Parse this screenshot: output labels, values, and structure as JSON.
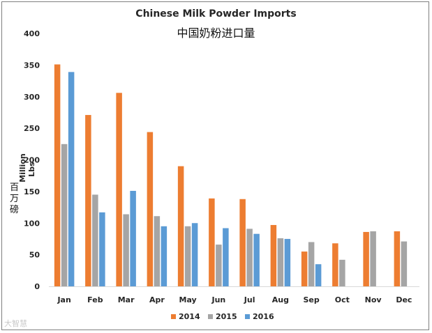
{
  "chart_data": {
    "type": "bar",
    "title": "Chinese Milk Powder Imports",
    "subtitle": "中国奶粉进口量",
    "ylabel": "Million Lbs.",
    "ylabel_cn": "百万磅",
    "xlabel": "",
    "ylim": [
      0,
      400
    ],
    "yticks": [
      0,
      50,
      100,
      150,
      200,
      250,
      300,
      350,
      400
    ],
    "grid": false,
    "legend_position": "bottom",
    "categories": [
      "Jan",
      "Feb",
      "Mar",
      "Apr",
      "May",
      "Jun",
      "Jul",
      "Aug",
      "Sep",
      "Oct",
      "Nov",
      "Dec"
    ],
    "series": [
      {
        "name": "2014",
        "color": "#ed7d31",
        "values": [
          351,
          271,
          306,
          244,
          190,
          139,
          138,
          97,
          55,
          68,
          86,
          87
        ]
      },
      {
        "name": "2015",
        "color": "#a5a5a5",
        "values": [
          225,
          145,
          114,
          111,
          95,
          66,
          91,
          76,
          70,
          42,
          87,
          71
        ]
      },
      {
        "name": "2016",
        "color": "#5b9bd5",
        "values": [
          339,
          117,
          151,
          95,
          100,
          92,
          83,
          75,
          35,
          null,
          null,
          null
        ]
      }
    ]
  },
  "watermark": "大智慧"
}
